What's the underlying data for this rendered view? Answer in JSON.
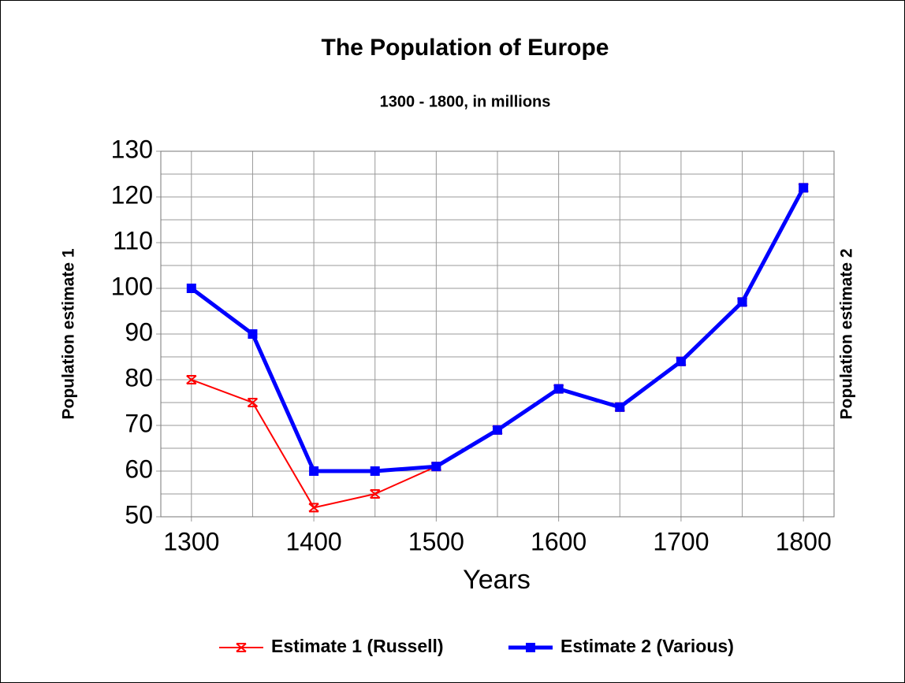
{
  "chart_data": {
    "type": "line",
    "title": "The Population of Europe",
    "subtitle": "1300 - 1800, in millions",
    "x_label": "Years",
    "y_label": "Population estimate 1",
    "y2_label": "Population estimate 2",
    "x": [
      1300,
      1350,
      1400,
      1450,
      1500,
      1550,
      1600,
      1650,
      1700,
      1750,
      1800
    ],
    "series": [
      {
        "name": "Estimate 1 (Russell)",
        "color": "#ff0000",
        "marker": "x",
        "values": [
          80,
          75,
          52,
          55,
          61,
          69,
          78,
          74,
          84,
          97,
          122
        ]
      },
      {
        "name": "Estimate 2 (Various)",
        "color": "#0000ff",
        "marker": "square",
        "values": [
          100,
          90,
          60,
          60,
          61,
          69,
          78,
          74,
          84,
          97,
          122
        ]
      }
    ],
    "xlim": [
      1275,
      1825
    ],
    "xticks": [
      1300,
      1400,
      1500,
      1600,
      1700,
      1800
    ],
    "x_minor_ticks": [
      1350,
      1450,
      1550,
      1650,
      1750
    ],
    "ylim": [
      50,
      130
    ],
    "yticks": [
      50,
      60,
      70,
      80,
      90,
      100,
      110,
      120,
      130
    ],
    "y_minor_ticks": [
      55,
      65,
      75,
      85,
      95,
      105,
      115,
      125
    ],
    "grid": true,
    "legend": "bottom"
  }
}
